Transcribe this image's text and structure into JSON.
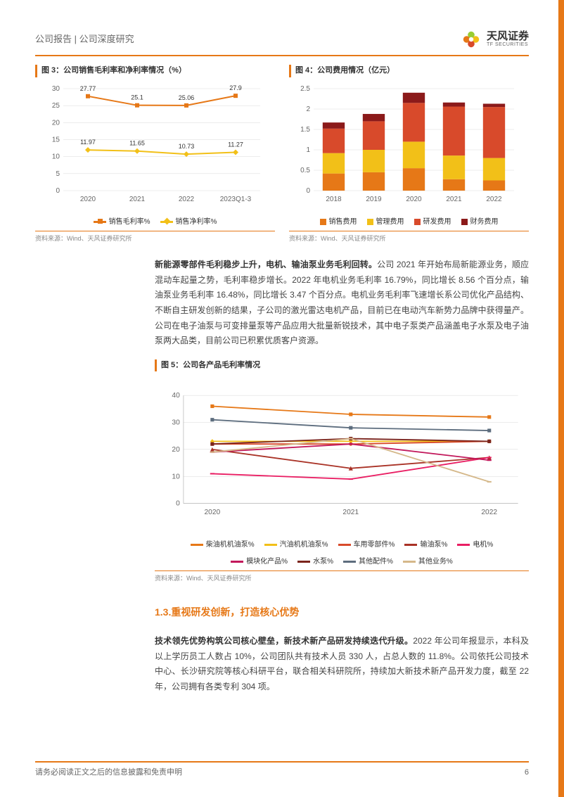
{
  "header": {
    "left": "公司报告 | 公司深度研究",
    "logo_cn": "天风证券",
    "logo_en": "TF SECURITIES"
  },
  "chart3": {
    "title": "图 3：公司销售毛利率和净利率情况（%）",
    "type": "line",
    "background_color": "#ffffff",
    "grid_color": "#d9d9d9",
    "categories": [
      "2020",
      "2021",
      "2022",
      "2023Q1-3"
    ],
    "ylim": [
      0,
      30
    ],
    "ytick_step": 5,
    "yticks": [
      0,
      5,
      10,
      15,
      20,
      25,
      30
    ],
    "series": [
      {
        "name": "销售毛利率%",
        "color": "#e67817",
        "marker": "square",
        "values": [
          27.77,
          25.1,
          25.06,
          27.9
        ]
      },
      {
        "name": "销售净利率%",
        "color": "#f2c018",
        "marker": "diamond",
        "values": [
          11.97,
          11.65,
          10.73,
          11.27
        ]
      }
    ],
    "label_fontsize": 10,
    "line_width": 2,
    "marker_size": 6,
    "source": "资料来源：Wind、天风证券研究所"
  },
  "chart4": {
    "title": "图 4：公司费用情况（亿元）",
    "type": "stacked-bar",
    "background_color": "#ffffff",
    "grid_color": "#d9d9d9",
    "categories": [
      "2018",
      "2019",
      "2020",
      "2021",
      "2022"
    ],
    "ylim": [
      0,
      2.5
    ],
    "ytick_step": 0.5,
    "yticks": [
      0,
      0.5,
      1,
      1.5,
      2,
      2.5
    ],
    "series": [
      {
        "name": "销售费用",
        "color": "#e67817",
        "values": [
          0.42,
          0.45,
          0.55,
          0.28,
          0.25
        ]
      },
      {
        "name": "管理费用",
        "color": "#f2c018",
        "values": [
          0.5,
          0.55,
          0.65,
          0.58,
          0.55
        ]
      },
      {
        "name": "研发费用",
        "color": "#d84a2b",
        "values": [
          0.6,
          0.7,
          0.95,
          1.2,
          1.25
        ]
      },
      {
        "name": "财务费用",
        "color": "#8b1a1a",
        "values": [
          0.15,
          0.18,
          0.25,
          0.1,
          0.08
        ]
      }
    ],
    "bar_width": 0.55,
    "label_fontsize": 10,
    "source": "资料来源：Wind、天风证券研究所"
  },
  "para1": {
    "bold": "新能源零部件毛利稳步上升，电机、输油泵业务毛利回转。",
    "text": "公司 2021 年开始布局新能源业务，顺应混动车起量之势，毛利率稳步增长。2022 年电机业务毛利率 16.79%，同比增长 8.56 个百分点，输油泵业务毛利率 16.48%，同比增长 3.47 个百分点。电机业务毛利率飞速增长系公司优化产品结构、不断自主研发创新的结果，子公司的激光雷达电机产品，目前已在电动汽车新势力品牌中获得量产。公司在电子油泵与可变排量泵等产品应用大批量新锐技术，其中电子泵类产品涵盖电子水泵及电子油泵两大品类，目前公司已积累优质客户资源。"
  },
  "chart5": {
    "title": "图 5：公司各产品毛利率情况",
    "type": "line",
    "background_color": "#ffffff",
    "grid_color": "#d9d9d9",
    "categories": [
      "2020",
      "2021",
      "2022"
    ],
    "ylim": [
      0,
      40
    ],
    "ytick_step": 10,
    "yticks": [
      0,
      10,
      20,
      30,
      40
    ],
    "series": [
      {
        "name": "柴油机机油泵%",
        "color": "#e67817",
        "marker": "square",
        "values": [
          36,
          33,
          32
        ]
      },
      {
        "name": "汽油机机油泵%",
        "color": "#f2c018",
        "marker": "diamond",
        "values": [
          23,
          23,
          23
        ]
      },
      {
        "name": "车用零部件%",
        "color": "#d84a2b",
        "marker": "circle",
        "values": [
          22,
          22,
          23
        ]
      },
      {
        "name": "输油泵%",
        "color": "#a93226",
        "marker": "triangle",
        "values": [
          20,
          13,
          17
        ]
      },
      {
        "name": "电机%",
        "color": "#e91e63",
        "marker": "line",
        "values": [
          11,
          9,
          17
        ]
      },
      {
        "name": "模块化产品%",
        "color": "#c2185b",
        "marker": "line",
        "values": [
          19,
          22,
          16
        ]
      },
      {
        "name": "水泵%",
        "color": "#7b241c",
        "marker": "square",
        "values": [
          22,
          24,
          23
        ]
      },
      {
        "name": "其他配件%",
        "color": "#5d6d7e",
        "marker": "square",
        "values": [
          31,
          28,
          27
        ]
      },
      {
        "name": "其他业务%",
        "color": "#d5b88a",
        "marker": "line",
        "values": [
          19,
          24,
          8
        ]
      }
    ],
    "label_fontsize": 10,
    "line_width": 1.8,
    "marker_size": 5,
    "source": "资料来源：Wind、天风证券研究所"
  },
  "section": {
    "title": "1.3.重视研发创新，打造核心优势"
  },
  "para2": {
    "bold": "技术领先优势构筑公司核心壁垒，新技术新产品研发持续迭代升级。",
    "text": "2022 年公司年报显示，本科及以上学历员工人数占 10%，公司团队共有技术人员 330 人，占总人数的 11.8%。公司依托公司技术中心、长沙研究院等核心科研平台，联合相关科研院所，持续加大新技术新产品开发力度，截至 22 年，公司拥有各类专利 304 项。"
  },
  "footer": {
    "disclaimer": "请务必阅读正文之后的信息披露和免责申明",
    "page": "6"
  }
}
